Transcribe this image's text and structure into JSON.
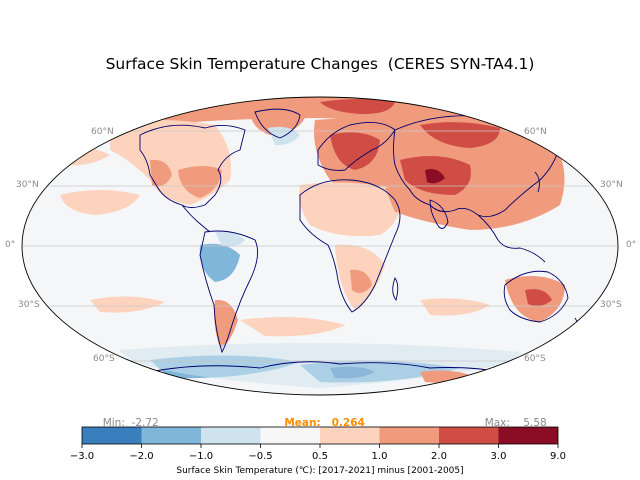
{
  "title": "Surface Skin Temperature Changes  (CERES SYN-TA4.1)",
  "latitude_labels": {
    "n60": "60°N",
    "n30": "30°N",
    "eq": "0°",
    "s30": "30°S",
    "s60": "60°S"
  },
  "stats": {
    "min_label": "Min:",
    "min_value": "-2.72",
    "mean_label": "Mean:",
    "mean_value": "0.264",
    "max_label": "Max:",
    "max_value": "5.58"
  },
  "colorbar": {
    "ticks": [
      "−3.0",
      "−2.0",
      "−1.0",
      "−0.5",
      "0.5",
      "1.0",
      "2.0",
      "3.0",
      "9.0"
    ],
    "colors": [
      "#3a7fbd",
      "#7fb6da",
      "#cfe3ef",
      "#f7f7f7",
      "#fdd3bd",
      "#f19b7e",
      "#cf4d45",
      "#8b0d25"
    ],
    "label": "Surface Skin Temperature (℃): [2017-2021] minus [2001-2005]"
  },
  "colors": {
    "coastline": "#00006e",
    "background": "#f5f6f7",
    "gridline": "#c8c8c8",
    "mean_highlight": "#ff8c00"
  }
}
